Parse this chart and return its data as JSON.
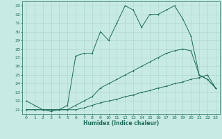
{
  "xlabel": "Humidex (Indice chaleur)",
  "xlim": [
    -0.5,
    23.5
  ],
  "ylim": [
    20.5,
    33.5
  ],
  "yticks": [
    21,
    22,
    23,
    24,
    25,
    26,
    27,
    28,
    29,
    30,
    31,
    32,
    33
  ],
  "xticks": [
    0,
    1,
    2,
    3,
    4,
    5,
    6,
    7,
    8,
    9,
    10,
    11,
    12,
    13,
    14,
    15,
    16,
    17,
    18,
    19,
    20,
    21,
    22,
    23
  ],
  "bg_color": "#c8eae4",
  "grid_color": "#a8d4cc",
  "line_color": "#1a6b5a",
  "line1_x": [
    0,
    1,
    2,
    3,
    4,
    5,
    6,
    7,
    8,
    9,
    10,
    11,
    12,
    13,
    14,
    15,
    16,
    17,
    18,
    19,
    20,
    21,
    22,
    23
  ],
  "line1_y": [
    22.0,
    21.5,
    21.0,
    20.8,
    21.0,
    21.5,
    27.2,
    27.5,
    27.5,
    30.0,
    29.0,
    31.0,
    33.0,
    32.5,
    30.5,
    32.0,
    32.0,
    32.5,
    33.0,
    31.5,
    29.5,
    25.0,
    24.5,
    23.5
  ],
  "line2_x": [
    0,
    1,
    2,
    3,
    4,
    5,
    6,
    7,
    8,
    9,
    10,
    11,
    12,
    13,
    14,
    15,
    16,
    17,
    18,
    19,
    20,
    21,
    22,
    23
  ],
  "line2_y": [
    21.0,
    21.0,
    21.0,
    21.0,
    21.0,
    21.0,
    21.5,
    22.0,
    22.5,
    23.5,
    24.0,
    24.5,
    25.0,
    25.5,
    26.0,
    26.5,
    27.0,
    27.5,
    27.8,
    28.0,
    27.8,
    25.0,
    24.5,
    23.5
  ],
  "line3_x": [
    0,
    1,
    2,
    3,
    4,
    5,
    6,
    7,
    8,
    9,
    10,
    11,
    12,
    13,
    14,
    15,
    16,
    17,
    18,
    19,
    20,
    21,
    22,
    23
  ],
  "line3_y": [
    21.0,
    21.0,
    21.0,
    21.0,
    21.0,
    21.0,
    21.0,
    21.2,
    21.5,
    21.8,
    22.0,
    22.2,
    22.5,
    22.7,
    23.0,
    23.2,
    23.5,
    23.7,
    24.0,
    24.2,
    24.5,
    24.7,
    25.0,
    23.5
  ]
}
